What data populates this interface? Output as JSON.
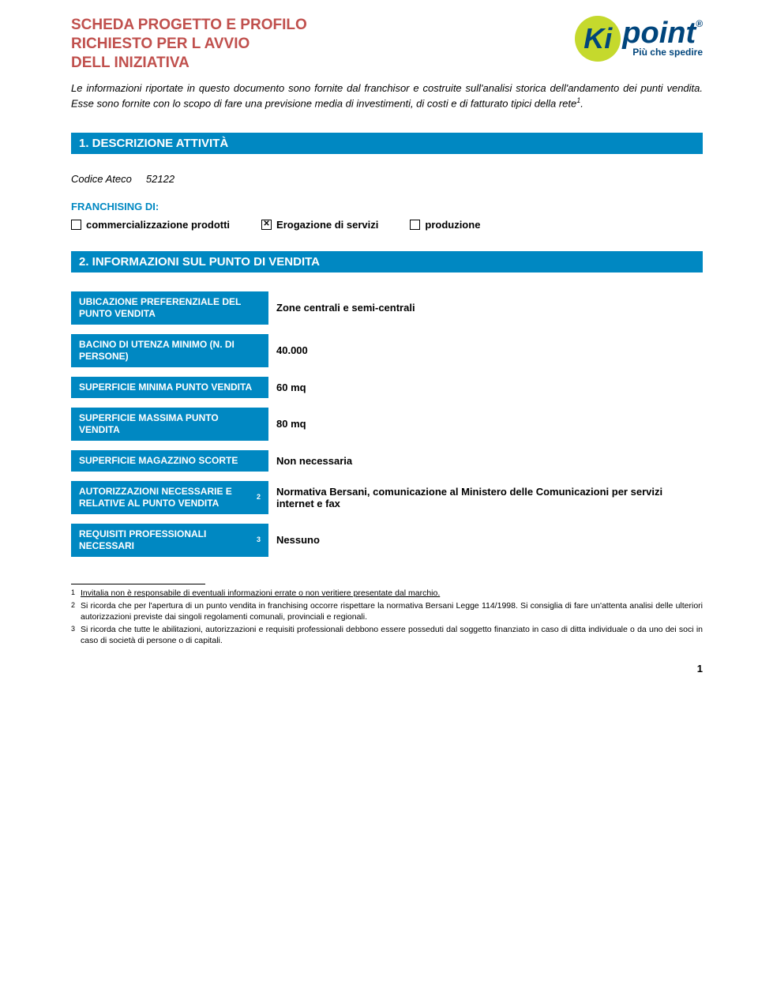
{
  "title": {
    "l1": "SCHEDA PROGETTO E PROFILO",
    "l2": "RICHIESTO PER L AVVIO",
    "l3": "DELL INIZIATIVA",
    "color": "#c0504d"
  },
  "logo": {
    "k": "Ki",
    "main": "point",
    "sub": "Più che spedire",
    "circle": "#c5d92d",
    "text": "#00457c",
    "reg": "®"
  },
  "intro": "Le informazioni riportate in questo documento sono fornite dal franchisor e costruite sull'analisi storica dell'andamento dei punti vendita. Esse sono fornite con lo scopo di fare una previsione media di investimenti, di costi e di fatturato tipici della rete",
  "intro_sup": "1",
  "intro_end": ".",
  "section1": "1. DESCRIZIONE ATTIVITÀ",
  "codice_label": "Codice Ateco",
  "codice_value": "52122",
  "franchising": "FRANCHISING DI:",
  "checks": [
    {
      "label": "commercializzazione prodotti",
      "checked": false
    },
    {
      "label": "Erogazione di servizi",
      "checked": true
    },
    {
      "label": "produzione",
      "checked": false
    }
  ],
  "section2": "2. INFORMAZIONI SUL PUNTO DI VENDITA",
  "rows": [
    {
      "label": "UBICAZIONE PREFERENZIALE DEL PUNTO VENDITA",
      "value": "Zone centrali e semi-centrali"
    },
    {
      "label": "BACINO DI UTENZA MINIMO (N. DI PERSONE)",
      "value": "40.000"
    },
    {
      "label": "SUPERFICIE MINIMA PUNTO VENDITA",
      "value": "60 mq"
    },
    {
      "label": "SUPERFICIE MASSIMA PUNTO VENDITA",
      "value": "80 mq"
    },
    {
      "label": "SUPERFICIE MAGAZZINO SCORTE",
      "value": "Non necessaria"
    },
    {
      "label": "AUTORIZZAZIONI NECESSARIE E RELATIVE AL PUNTO VENDITA",
      "sup": "2",
      "value": "Normativa Bersani, comunicazione al Ministero delle Comunicazioni per servizi internet e fax"
    },
    {
      "label": "REQUISITI PROFESSIONALI NECESSARI",
      "sup": "3",
      "value": "Nessuno"
    }
  ],
  "accent": "#0088c2",
  "footnotes": [
    {
      "n": "1",
      "text": "Invitalia non è responsabile di eventuali informazioni errate o non veritiere presentate dal marchio.",
      "u": true
    },
    {
      "n": "2",
      "text": "Si ricorda che per l'apertura di un punto vendita in franchising occorre rispettare la normativa Bersani Legge 114/1998. Si consiglia di fare un'attenta analisi delle ulteriori autorizzazioni previste dai singoli regolamenti comunali, provinciali e regionali."
    },
    {
      "n": "3",
      "text": "Si ricorda che tutte le abilitazioni, autorizzazioni e requisiti professionali debbono essere posseduti dal soggetto finanziato in caso di ditta individuale o da uno dei soci in caso di società di persone o di capitali."
    }
  ],
  "page": "1"
}
